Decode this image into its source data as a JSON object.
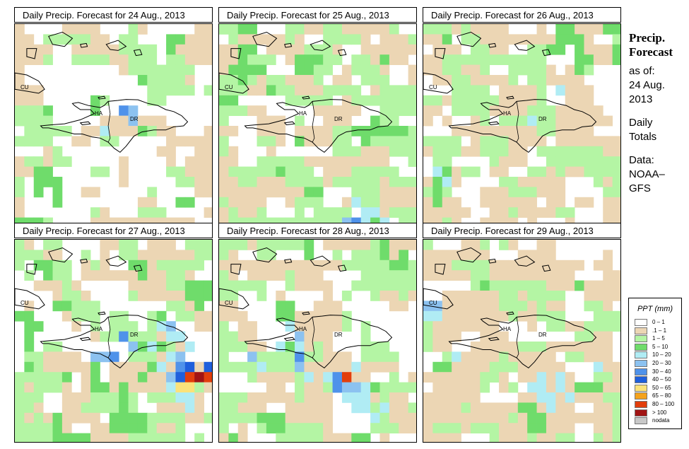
{
  "panels": [
    {
      "title": "Daily Precip. Forecast for  24 Aug., 2013"
    },
    {
      "title": "Daily Precip. Forecast for  25 Aug., 2013"
    },
    {
      "title": "Daily Precip. Forecast for  26 Aug., 2013"
    },
    {
      "title": "Daily Precip. Forecast for  27 Aug., 2013"
    },
    {
      "title": "Daily Precip. Forecast for  28 Aug., 2013"
    },
    {
      "title": "Daily Precip. Forecast for  29 Aug., 2013"
    }
  ],
  "map_labels": {
    "cu": "CU",
    "ha": "HA",
    "dr": "DR"
  },
  "side": {
    "line1": "Precip.",
    "line2": "Forecast",
    "asof": "as of:",
    "date1": "24 Aug.",
    "date2": "2013",
    "daily1": "Daily",
    "daily2": "Totals",
    "data1": "Data:",
    "data2": "NOAA–",
    "data3": "GFS"
  },
  "legend": {
    "title": "PPT (mm)",
    "items": [
      {
        "label": "0 – 1",
        "color": "#ffffff"
      },
      {
        "label": ".1 – 1",
        "color": "#ecd6b4"
      },
      {
        "label": "1 – 5",
        "color": "#b4f5a4"
      },
      {
        "label": "5 – 10",
        "color": "#6fdc6b"
      },
      {
        "label": "10 – 20",
        "color": "#b0ecf4"
      },
      {
        "label": "20 – 30",
        "color": "#8cc2f0"
      },
      {
        "label": "30 – 40",
        "color": "#4f92ea"
      },
      {
        "label": "40 – 50",
        "color": "#1f5fdc"
      },
      {
        "label": "50 – 65",
        "color": "#fbe27a"
      },
      {
        "label": "65 – 80",
        "color": "#f4a21c"
      },
      {
        "label": "80 – 100",
        "color": "#e23e0c"
      },
      {
        "label": "> 100",
        "color": "#a11414"
      },
      {
        "label": "nodata",
        "color": "#c8c8c8"
      }
    ]
  }
}
